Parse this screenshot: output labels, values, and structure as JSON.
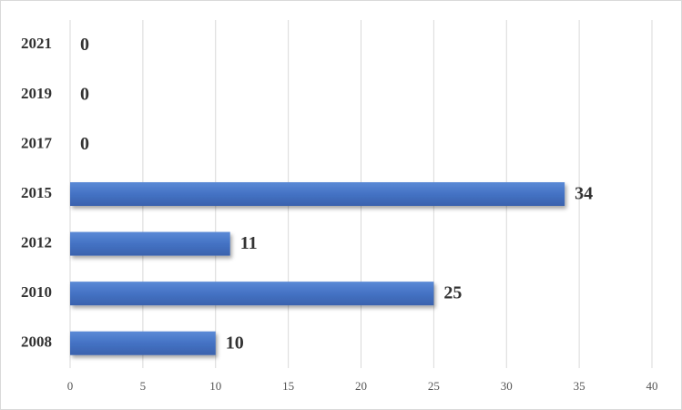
{
  "chart_data": {
    "type": "bar",
    "orientation": "horizontal",
    "categories": [
      "2008",
      "2010",
      "2012",
      "2015",
      "2017",
      "2019",
      "2021"
    ],
    "values": [
      10,
      25,
      11,
      34,
      0,
      0,
      0
    ],
    "color": "#4472c4",
    "xlim": [
      0,
      40
    ],
    "xticks": [
      0,
      5,
      10,
      15,
      20,
      25,
      30,
      35,
      40
    ],
    "grid": true
  }
}
